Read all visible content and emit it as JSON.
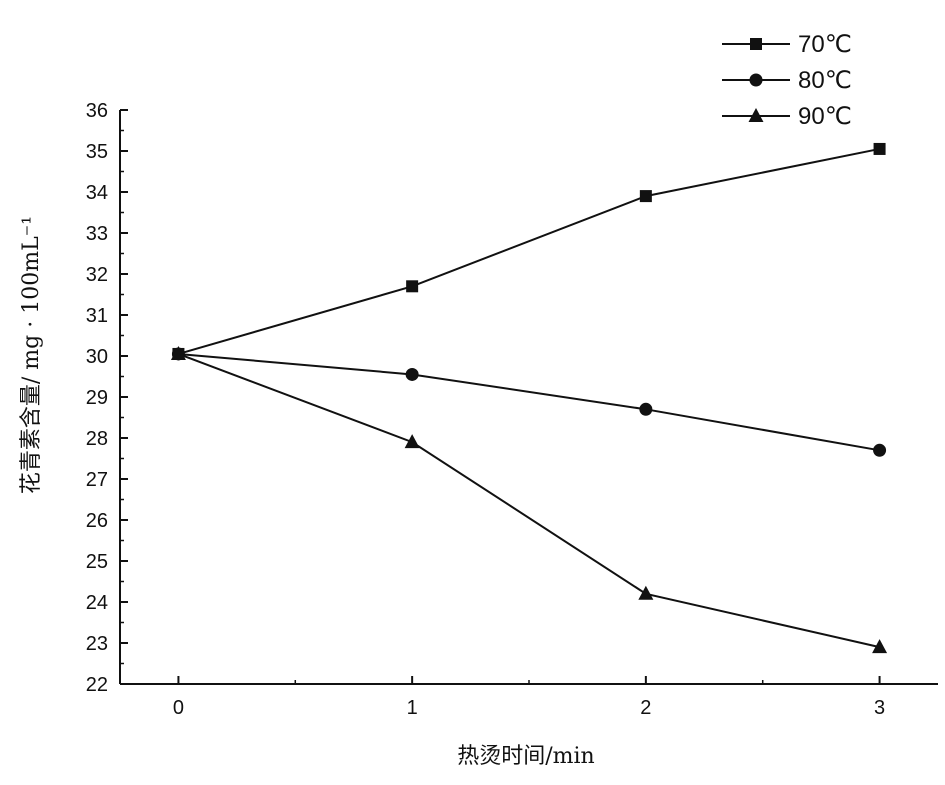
{
  "chart_data": {
    "type": "line",
    "title": "",
    "xlabel": "热烫时间/min",
    "ylabel": "花青素含量/ mg · 100mL⁻¹",
    "x": [
      0,
      1,
      2,
      3
    ],
    "x_tick_labels": [
      "0",
      "1",
      "2",
      "3"
    ],
    "xlim": [
      -0.25,
      3.25
    ],
    "ylim": [
      22,
      36
    ],
    "y_tick_labels": [
      "22",
      "23",
      "24",
      "25",
      "26",
      "27",
      "28",
      "29",
      "30",
      "31",
      "32",
      "33",
      "34",
      "35",
      "36"
    ],
    "grid": false,
    "legend_position": "top-right",
    "series": [
      {
        "name": "70℃",
        "marker": "square",
        "values": [
          30.05,
          31.7,
          33.9,
          35.05
        ]
      },
      {
        "name": "80℃",
        "marker": "circle",
        "values": [
          30.05,
          29.55,
          28.7,
          27.7
        ]
      },
      {
        "name": "90℃",
        "marker": "triangle",
        "values": [
          30.05,
          27.9,
          24.2,
          22.9
        ]
      }
    ],
    "colors": {
      "line": "#111111",
      "marker": "#111111"
    }
  }
}
